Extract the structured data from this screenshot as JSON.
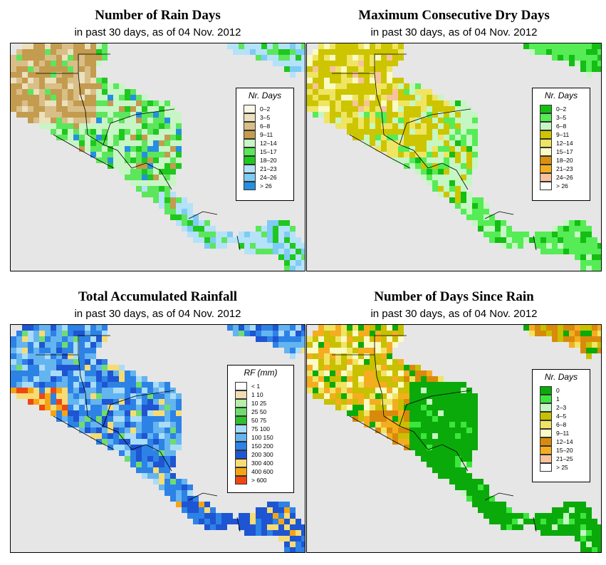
{
  "panels": [
    {
      "title": "Number of Rain Days",
      "subtitle": "in past 30 days, as of  04 Nov. 2012",
      "legend_title": "Nr. Days",
      "palette": "rain",
      "legend": [
        {
          "label": "0–2",
          "color": "#fbf6e6"
        },
        {
          "label": "3–5",
          "color": "#ece0bd"
        },
        {
          "label": "6–8",
          "color": "#d9be88"
        },
        {
          "label": "9–11",
          "color": "#c39c4f"
        },
        {
          "label": "12–14",
          "color": "#c8f5c5"
        },
        {
          "label": "15–17",
          "color": "#5ce65c"
        },
        {
          "label": "18–20",
          "color": "#1ec81e"
        },
        {
          "label": "21–23",
          "color": "#b4e2f9"
        },
        {
          "label": "24–26",
          "color": "#7ecbf5"
        },
        {
          "label": "> 26",
          "color": "#2590e0"
        }
      ]
    },
    {
      "title": "Maximum Consecutive Dry Days",
      "subtitle": "in past 30 days, as of  04 Nov. 2012",
      "legend_title": "Nr. Days",
      "palette": "dry",
      "legend": [
        {
          "label": "0–2",
          "color": "#14be14"
        },
        {
          "label": "3–5",
          "color": "#55ec55"
        },
        {
          "label": "6–8",
          "color": "#c6f6c4"
        },
        {
          "label": "9–11",
          "color": "#cdc500"
        },
        {
          "label": "12–14",
          "color": "#efe563"
        },
        {
          "label": "15–17",
          "color": "#fafac4"
        },
        {
          "label": "18–20",
          "color": "#da8f0f"
        },
        {
          "label": "21–23",
          "color": "#f5ad20"
        },
        {
          "label": "24–26",
          "color": "#f7c29c"
        },
        {
          "label": "> 26",
          "color": "#ffffff"
        }
      ]
    },
    {
      "title": "Total Accumulated Rainfall",
      "subtitle": "in past 30 days, as of  04 Nov. 2012",
      "legend_title": "RF (mm)",
      "palette": "rf",
      "legend": [
        {
          "label": "< 1",
          "color": "#ffffff"
        },
        {
          "label": "1  10",
          "color": "#f1dcb4"
        },
        {
          "label": "10  25",
          "color": "#b4f0a8"
        },
        {
          "label": "25  50",
          "color": "#6fdc6f"
        },
        {
          "label": "50  75",
          "color": "#2fbf2f"
        },
        {
          "label": "75  100",
          "color": "#a9dcf7"
        },
        {
          "label": "100  150",
          "color": "#64b4f0"
        },
        {
          "label": "150  200",
          "color": "#2d82e6"
        },
        {
          "label": "200  300",
          "color": "#1e55d2"
        },
        {
          "label": "300  400",
          "color": "#f7dc73"
        },
        {
          "label": "400  600",
          "color": "#f5a514"
        },
        {
          "label": "> 600",
          "color": "#f04614"
        }
      ]
    },
    {
      "title": "Number of Days Since Rain",
      "subtitle": "in past 30 days, as of  04 Nov. 2012",
      "legend_title": "Nr. Days",
      "palette": "since",
      "legend": [
        {
          "label": "0",
          "color": "#0aaa0a"
        },
        {
          "label": "1",
          "color": "#3ce63c"
        },
        {
          "label": "2–3",
          "color": "#c6f6c4"
        },
        {
          "label": "4–5",
          "color": "#c8c000"
        },
        {
          "label": "6–8",
          "color": "#efe563"
        },
        {
          "label": "9–11",
          "color": "#fafac4"
        },
        {
          "label": "12–14",
          "color": "#d98a0c"
        },
        {
          "label": "15–20",
          "color": "#f5ad20"
        },
        {
          "label": "21–25",
          "color": "#f7c29c"
        },
        {
          "label": "> 25",
          "color": "#ffffff"
        }
      ]
    }
  ],
  "colors": {
    "ocean": "#e6e6e6",
    "border": "#000000"
  }
}
